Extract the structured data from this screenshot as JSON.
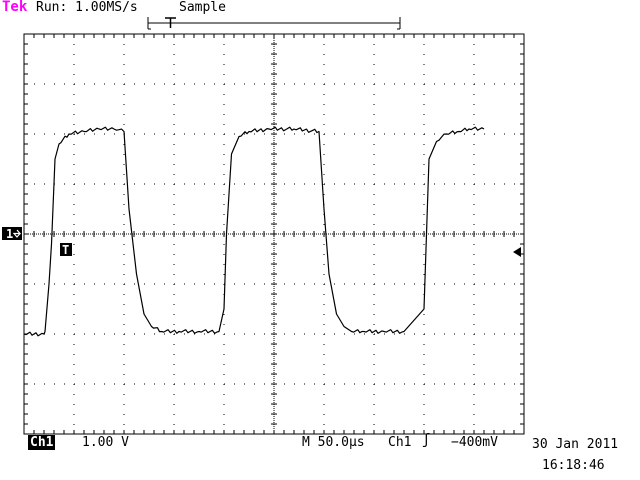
{
  "header": {
    "brand": "Tek",
    "run_status": "Run: 1.00MS/s",
    "acquisition_mode": "Sample"
  },
  "markers": {
    "channel_marker": "1",
    "trigger_marker": "T"
  },
  "footer": {
    "channel_label": "Ch1",
    "channel_scale": "1.00 V",
    "timebase": "M 50.0µs",
    "trigger_source": "Ch1",
    "trigger_slope_icon": "rising-edge-icon",
    "trigger_level": "−400mV",
    "date": "30 Jan 2011",
    "time": "16:18:46"
  },
  "colors": {
    "brand": "#ff00ff",
    "trace": "#000000",
    "graticule": "#000000",
    "background": "#ffffff"
  },
  "chart_data": {
    "type": "line",
    "xlabel": "",
    "ylabel": "",
    "xlim": [
      0,
      10
    ],
    "ylim": [
      -4,
      4
    ],
    "grid": true,
    "series": [
      {
        "x": [
          0,
          0.4,
          0.42,
          0.5,
          0.55,
          0.62,
          0.7,
          0.9,
          1.2,
          1.5,
          1.8,
          2.0,
          2.1,
          2.25,
          2.4,
          2.55,
          2.75,
          3.1,
          3.5,
          3.9,
          4.0,
          4.05,
          4.15,
          4.3,
          4.5,
          4.9,
          5.4,
          5.9,
          6.0,
          6.1,
          6.25,
          6.4,
          6.55,
          6.8,
          7.2,
          7.6,
          8.0,
          8.05,
          8.1,
          8.25,
          8.45,
          8.7,
          8.9,
          9.2
        ],
        "y": [
          -2,
          -2,
          -1.95,
          -1.0,
          -0.2,
          1.5,
          1.8,
          2.0,
          2.05,
          2.1,
          2.1,
          2.05,
          0.5,
          -0.8,
          -1.6,
          -1.85,
          -1.95,
          -1.95,
          -1.95,
          -1.95,
          -1.5,
          0,
          1.6,
          1.95,
          2.05,
          2.1,
          2.1,
          2.05,
          0.5,
          -0.8,
          -1.6,
          -1.85,
          -1.95,
          -1.95,
          -1.95,
          -1.95,
          -1.5,
          0,
          1.5,
          1.85,
          2.0,
          2.05,
          2.1,
          2.1
        ]
      }
    ]
  }
}
